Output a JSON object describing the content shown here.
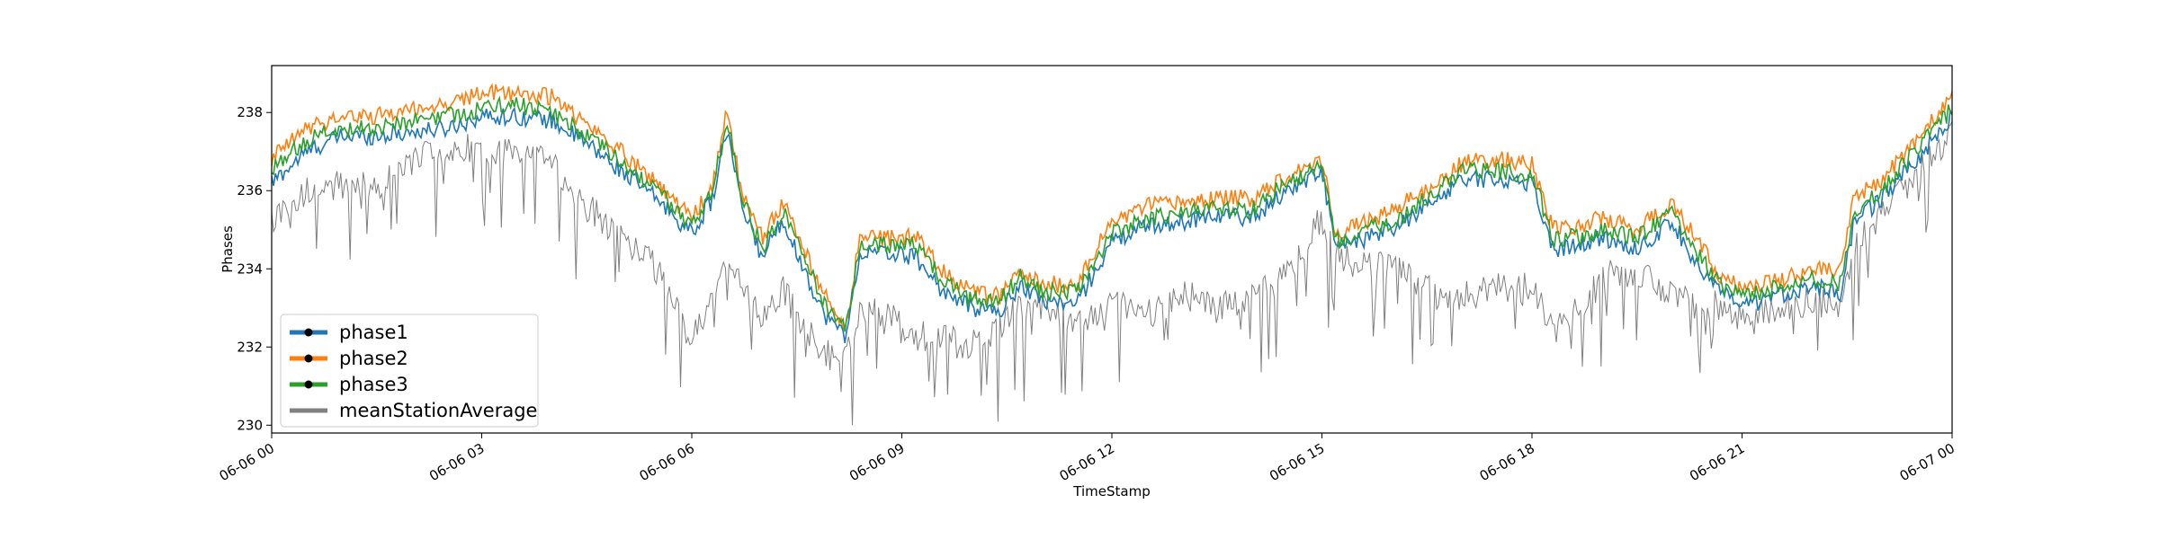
{
  "chart_data": {
    "type": "line",
    "title": "",
    "xlabel": "TimeStamp",
    "ylabel": "Phases",
    "xlim_hours": [
      0,
      24
    ],
    "ylim": [
      229.8,
      239.2
    ],
    "grid": false,
    "legend_position": "lower-left",
    "x_ticks": [
      {
        "hour": 0,
        "label": "06-06 00"
      },
      {
        "hour": 3,
        "label": "06-06 03"
      },
      {
        "hour": 6,
        "label": "06-06 06"
      },
      {
        "hour": 9,
        "label": "06-06 09"
      },
      {
        "hour": 12,
        "label": "06-06 12"
      },
      {
        "hour": 15,
        "label": "06-06 15"
      },
      {
        "hour": 18,
        "label": "06-06 18"
      },
      {
        "hour": 21,
        "label": "06-06 21"
      },
      {
        "hour": 24,
        "label": "06-07 00"
      }
    ],
    "y_ticks": [
      230,
      232,
      234,
      236,
      238
    ],
    "x": [
      0,
      0.5,
      1,
      1.5,
      2,
      2.5,
      3,
      3.5,
      4,
      4.5,
      5,
      5.5,
      6,
      6.3,
      6.5,
      6.7,
      7,
      7.3,
      7.5,
      7.9,
      8.2,
      8.4,
      8.8,
      9.2,
      9.6,
      10,
      10.4,
      10.7,
      11,
      11.5,
      12,
      12.5,
      13,
      13.5,
      14,
      14.5,
      15,
      15.2,
      15.5,
      16,
      16.5,
      17,
      17.5,
      18,
      18.3,
      18.7,
      19,
      19.5,
      20,
      20.4,
      20.7,
      21,
      21.5,
      22,
      22.4,
      22.6,
      23,
      23.5,
      24
    ],
    "series": [
      {
        "name": "phase1",
        "color": "#1f77b4",
        "marker": "o",
        "values": [
          236.2,
          237.0,
          237.4,
          237.4,
          237.5,
          237.6,
          237.9,
          237.9,
          237.8,
          237.2,
          236.5,
          235.8,
          234.9,
          235.8,
          237.6,
          235.7,
          234.3,
          235.3,
          234.4,
          232.8,
          232.3,
          234.4,
          234.4,
          234.3,
          233.4,
          233.0,
          232.9,
          233.6,
          233.2,
          233.1,
          234.7,
          235.1,
          235.2,
          235.4,
          235.3,
          236.0,
          236.5,
          234.5,
          234.7,
          235.0,
          235.6,
          236.3,
          236.3,
          236.2,
          234.5,
          234.6,
          234.8,
          234.5,
          235.2,
          234.0,
          233.4,
          233.0,
          233.3,
          233.6,
          233.3,
          235.2,
          235.8,
          236.8,
          237.9
        ]
      },
      {
        "name": "phase2",
        "color": "#ff7f0e",
        "marker": "o",
        "values": [
          236.8,
          237.6,
          237.9,
          237.9,
          238.1,
          238.2,
          238.5,
          238.5,
          238.4,
          237.7,
          237.0,
          236.2,
          235.3,
          236.1,
          238.0,
          236.1,
          234.8,
          235.7,
          234.9,
          233.3,
          232.5,
          234.8,
          234.8,
          234.8,
          233.9,
          233.4,
          233.3,
          233.9,
          233.6,
          233.6,
          235.2,
          235.6,
          235.7,
          235.8,
          235.8,
          236.4,
          236.8,
          234.9,
          235.1,
          235.5,
          236.0,
          236.7,
          236.8,
          236.7,
          235.0,
          235.1,
          235.3,
          235.0,
          235.7,
          234.6,
          233.8,
          233.5,
          233.7,
          234.0,
          233.9,
          235.8,
          236.3,
          237.3,
          238.4
        ]
      },
      {
        "name": "phase3",
        "color": "#2ca02c",
        "marker": "o",
        "values": [
          236.5,
          237.3,
          237.6,
          237.6,
          237.8,
          237.9,
          238.1,
          238.2,
          238.0,
          237.4,
          236.7,
          236.0,
          235.1,
          236.0,
          237.8,
          236.0,
          234.5,
          235.5,
          234.7,
          233.1,
          232.4,
          234.6,
          234.6,
          234.6,
          233.7,
          233.2,
          233.2,
          233.8,
          233.4,
          233.4,
          234.9,
          235.3,
          235.4,
          235.6,
          235.5,
          236.2,
          236.6,
          234.7,
          234.9,
          235.2,
          235.8,
          236.5,
          236.5,
          236.4,
          234.8,
          234.8,
          235.0,
          234.8,
          235.5,
          234.3,
          233.6,
          233.3,
          233.5,
          233.8,
          233.6,
          235.5,
          236.0,
          237.1,
          238.1
        ]
      },
      {
        "name": "meanStationAverage",
        "color": "#808080",
        "values": [
          235.3,
          236.0,
          236.2,
          236.1,
          236.8,
          237.0,
          237.1,
          237.0,
          236.7,
          235.6,
          234.8,
          234.0,
          232.2,
          233.4,
          234.5,
          233.7,
          232.6,
          233.5,
          232.8,
          231.8,
          231.8,
          232.8,
          232.9,
          232.3,
          232.2,
          232.0,
          232.6,
          233.0,
          233.1,
          232.6,
          233.3,
          232.8,
          233.4,
          233.0,
          233.2,
          233.8,
          235.3,
          234.4,
          234.0,
          234.1,
          233.5,
          233.3,
          233.5,
          233.6,
          232.3,
          233.0,
          233.8,
          233.9,
          233.3,
          233.2,
          233.0,
          232.9,
          233.0,
          233.2,
          233.0,
          234.6,
          235.4,
          236.4,
          237.5
        ]
      }
    ]
  }
}
